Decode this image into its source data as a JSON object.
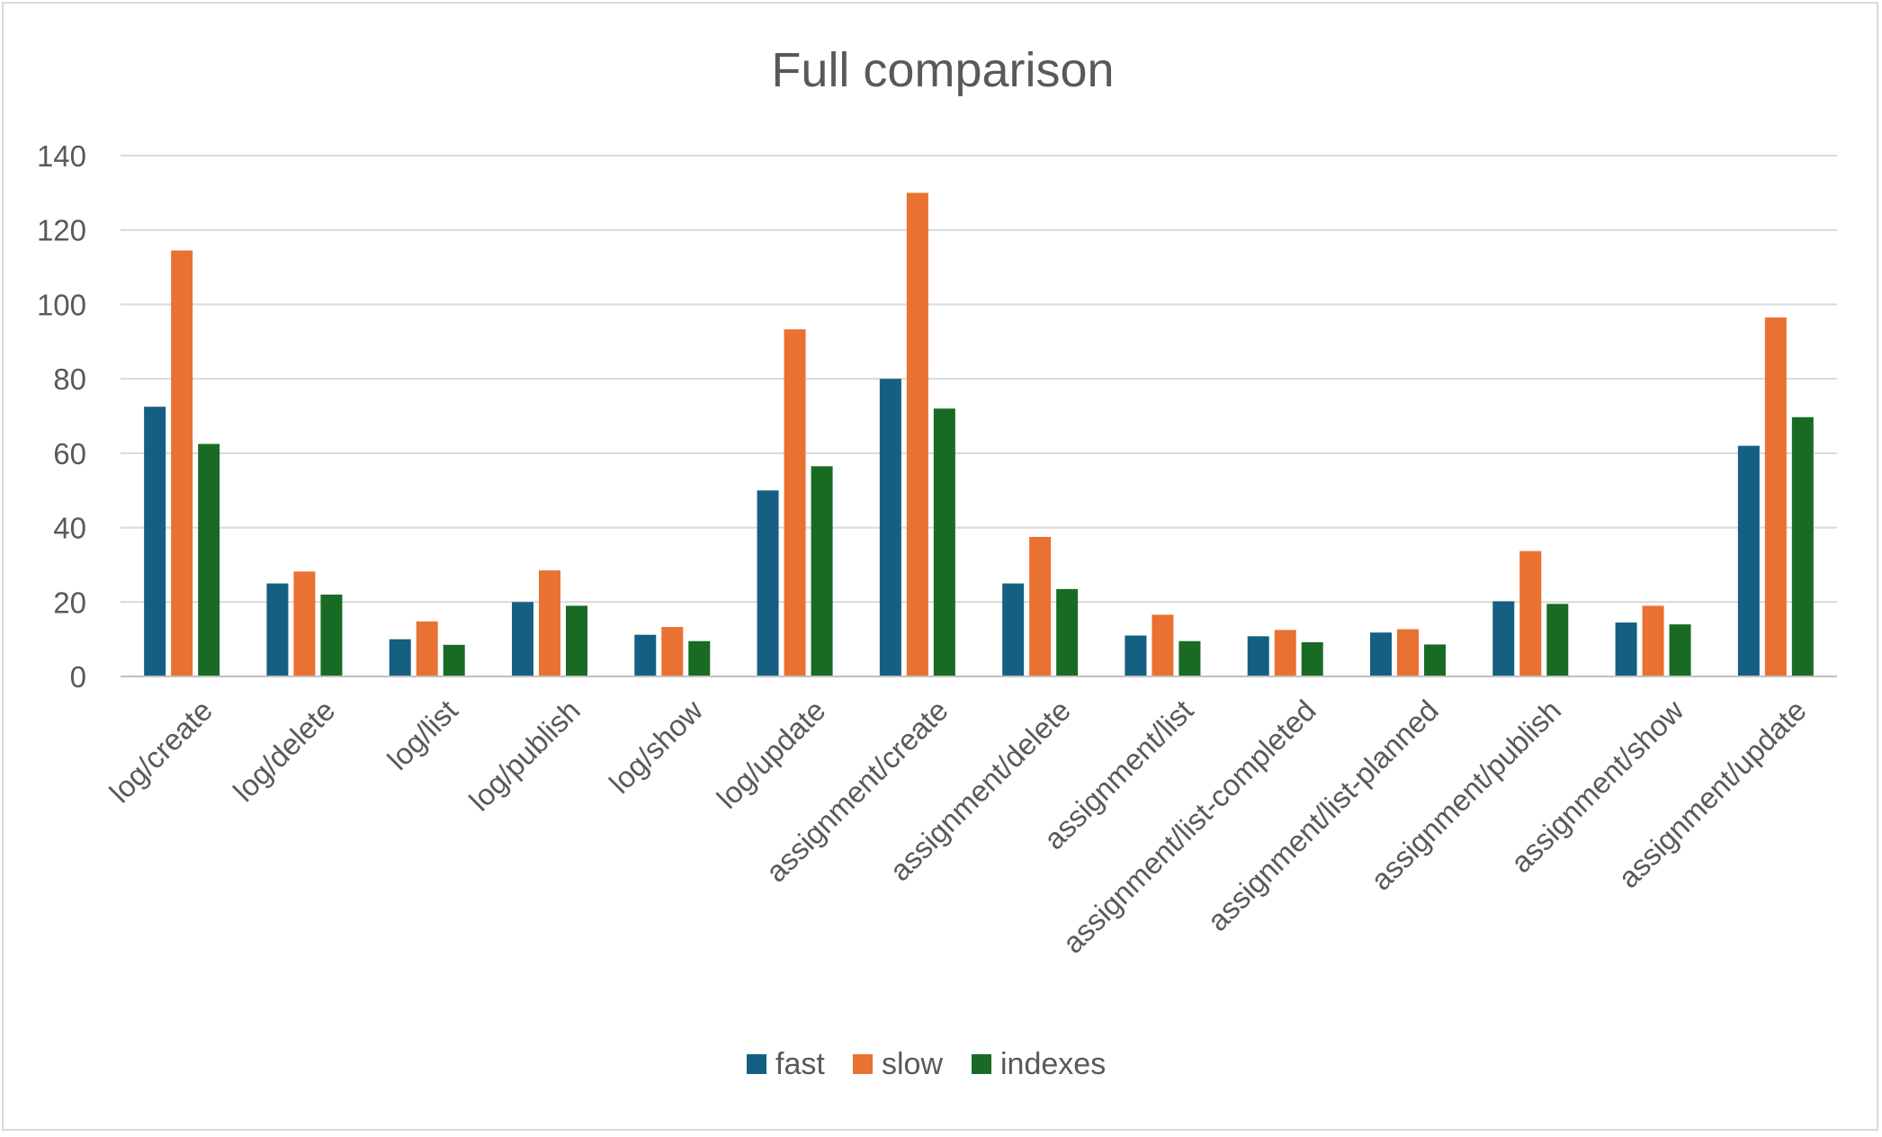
{
  "chart_data": {
    "type": "bar",
    "title": "Full comparison",
    "xlabel": "",
    "ylabel": "",
    "ylim": [
      0,
      140
    ],
    "yticks": [
      0,
      20,
      40,
      60,
      80,
      100,
      120,
      140
    ],
    "grid": true,
    "legend_position": "bottom",
    "categories": [
      "log/create",
      "log/delete",
      "log/list",
      "log/publish",
      "log/show",
      "log/update",
      "assignment/create",
      "assignment/delete",
      "assignment/list",
      "assignment/list-completed",
      "assignment/list-planned",
      "assignment/publish",
      "assignment/show",
      "assignment/update"
    ],
    "series": [
      {
        "name": "fast",
        "color": "#156082",
        "values": [
          72.5,
          25,
          10,
          20,
          11.2,
          50,
          80,
          25,
          11,
          10.8,
          11.8,
          20.2,
          14.5,
          62
        ]
      },
      {
        "name": "slow",
        "color": "#E97132",
        "values": [
          114.5,
          28.2,
          14.8,
          28.5,
          13.3,
          93.3,
          130,
          37.5,
          16.6,
          12.5,
          12.7,
          33.7,
          19,
          96.5
        ]
      },
      {
        "name": "indexes",
        "color": "#196B24",
        "values": [
          62.5,
          22,
          8.5,
          19,
          9.5,
          56.5,
          72,
          23.5,
          9.5,
          9.2,
          8.6,
          19.5,
          14,
          69.7
        ]
      }
    ]
  }
}
